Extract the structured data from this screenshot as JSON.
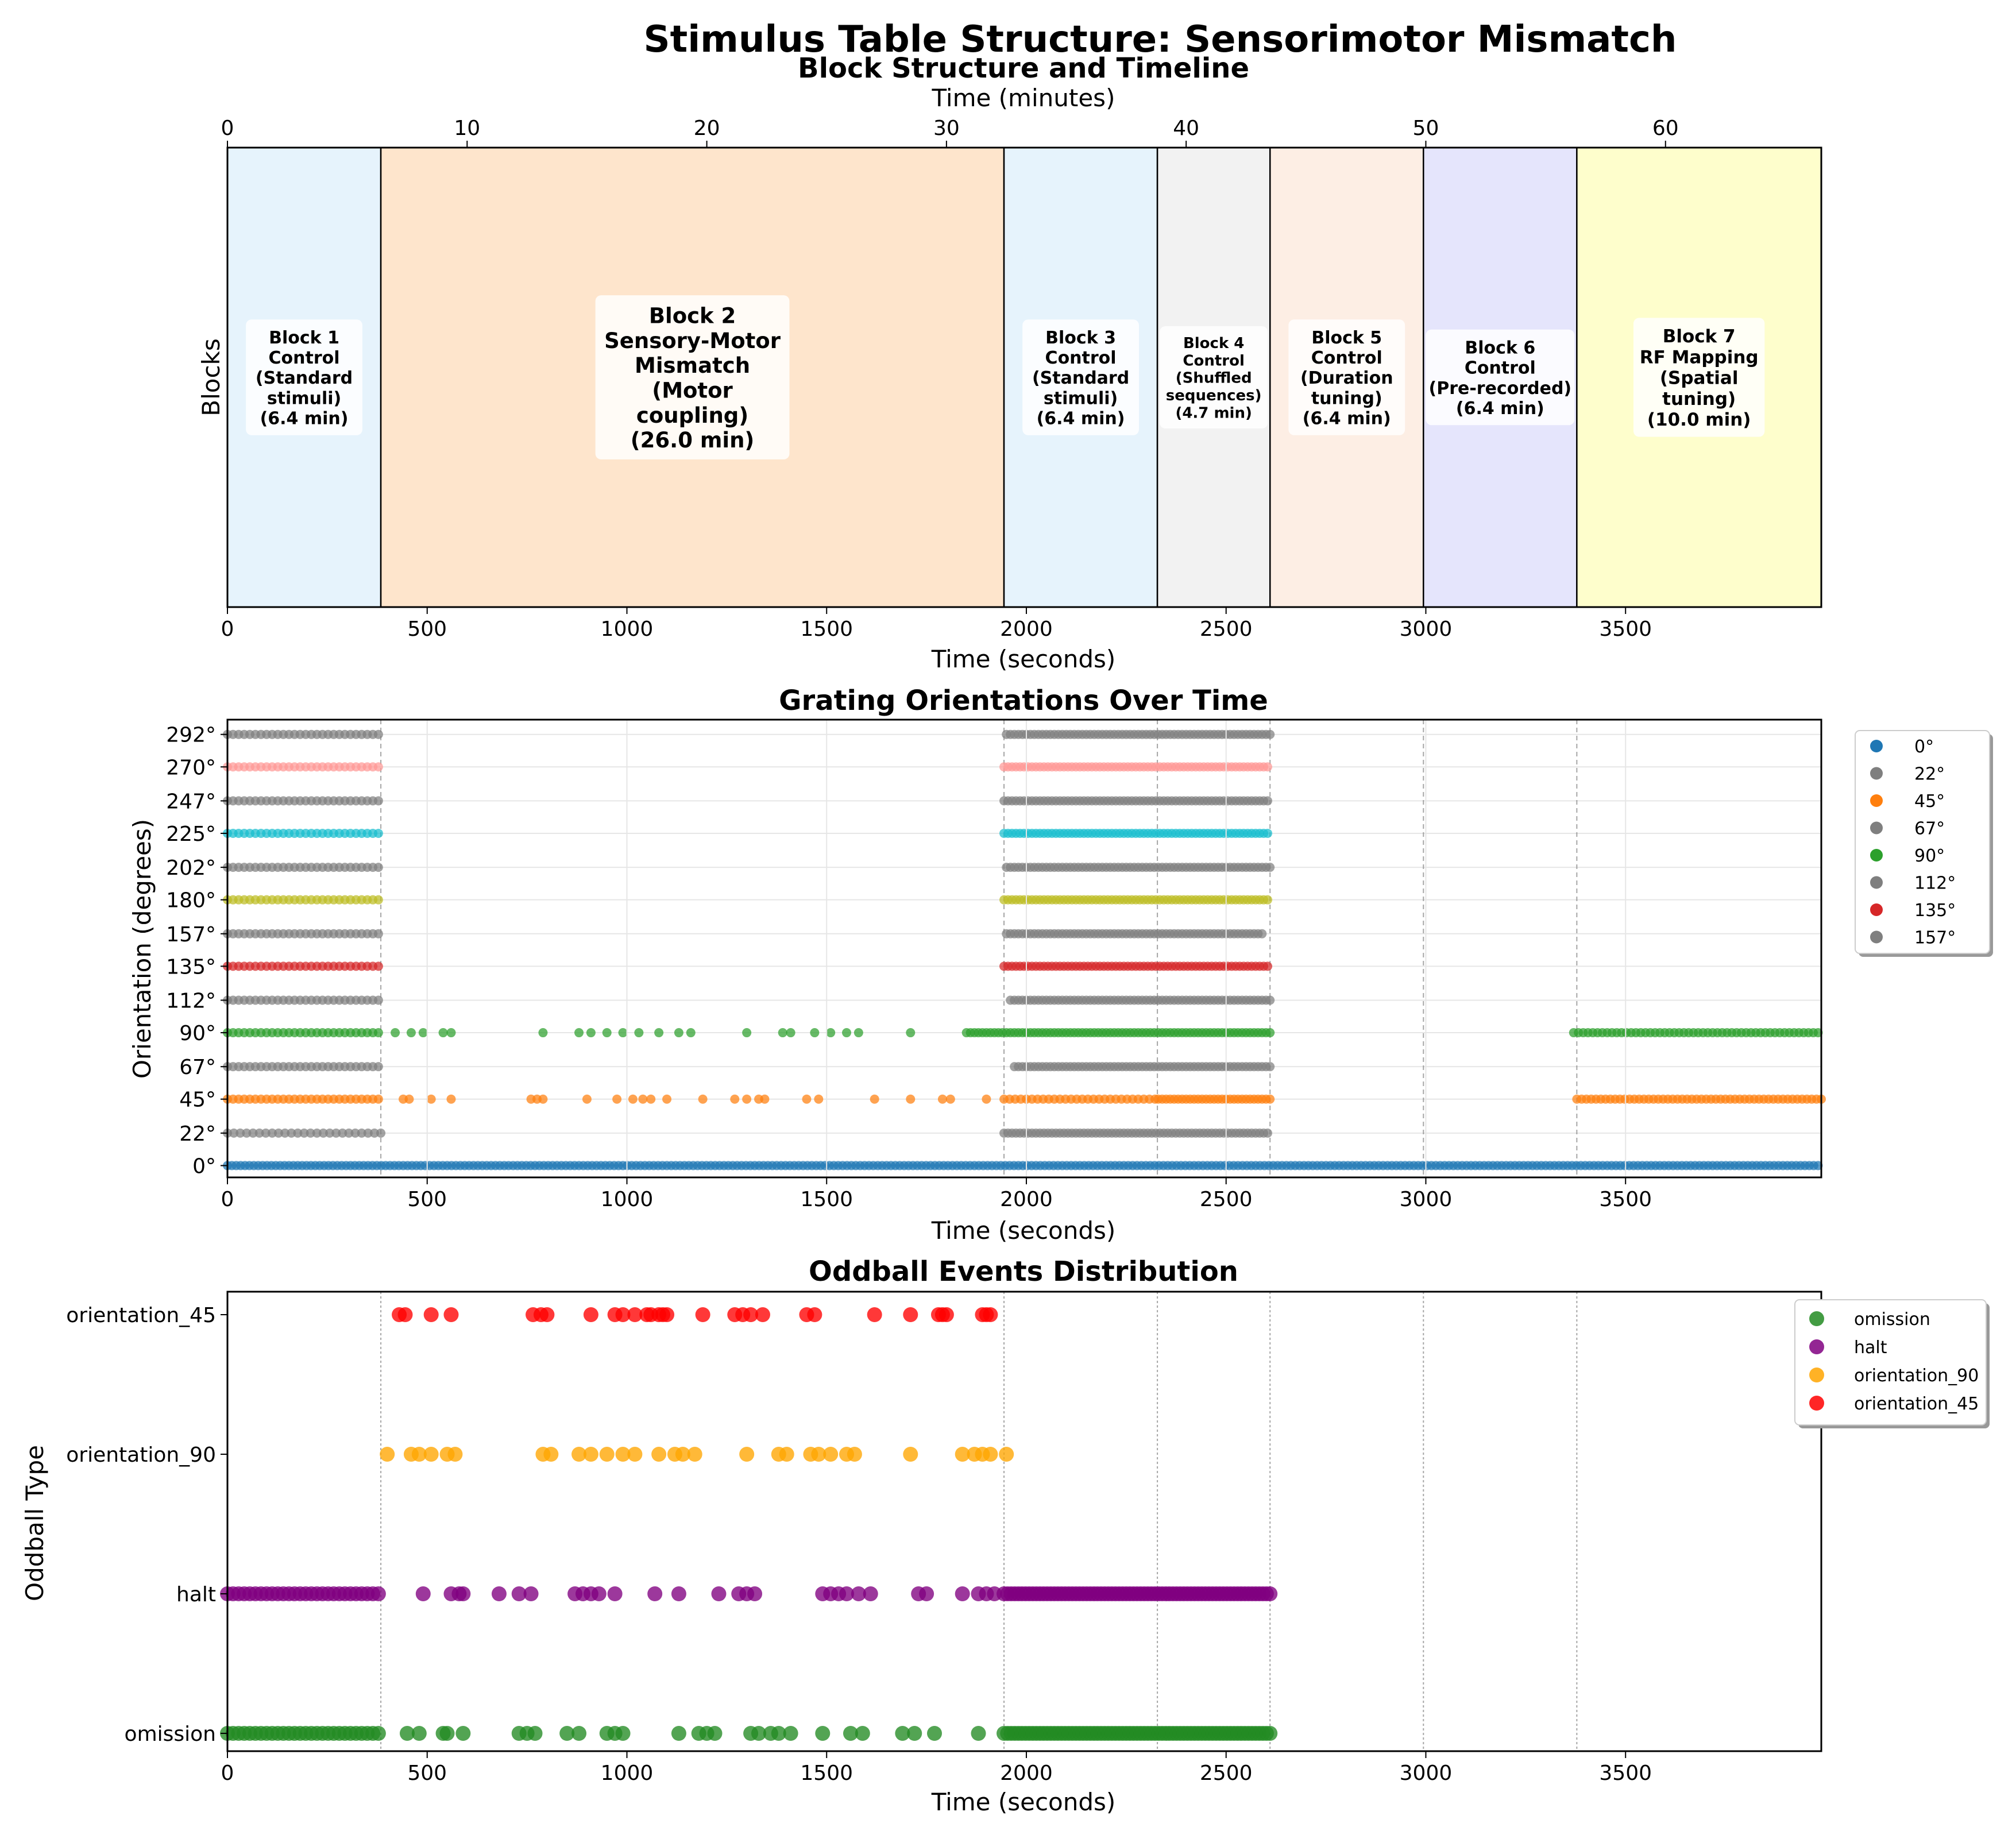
{
  "figure_title": "Stimulus Table Structure: Sensorimotor Mismatch",
  "chart_data": [
    {
      "type": "timeline",
      "title": "Block Structure and Timeline",
      "xlabel": "Time (seconds)",
      "ylabel": "Blocks",
      "top_xlabel": "Time (minutes)",
      "xlim": [
        0,
        3990
      ],
      "x_ticks": [
        0,
        500,
        1000,
        1500,
        2000,
        2500,
        3000,
        3500
      ],
      "top_ticks": [
        0,
        10,
        20,
        30,
        40,
        50,
        60
      ],
      "blocks": [
        {
          "start": 0,
          "end": 384,
          "color": "#e6f3fc",
          "lines": [
            "Block 1",
            "Control",
            "(Standard",
            "stimuli)",
            "(6.4 min)"
          ]
        },
        {
          "start": 384,
          "end": 1944,
          "color": "#fee5cc",
          "lines": [
            "Block 2",
            "Sensory-Motor",
            "Mismatch",
            "(Motor",
            "coupling)",
            "(26.0 min)"
          ]
        },
        {
          "start": 1944,
          "end": 2328,
          "color": "#e6f3fc",
          "lines": [
            "Block 3",
            "Control",
            "(Standard",
            "stimuli)",
            "(6.4 min)"
          ]
        },
        {
          "start": 2328,
          "end": 2610,
          "color": "#f2f2f2",
          "lines": [
            "Block 4",
            "Control",
            "(Shuffled",
            "sequences)",
            "(4.7 min)"
          ]
        },
        {
          "start": 2610,
          "end": 2994,
          "color": "#fdeee4",
          "lines": [
            "Block 5",
            "Control",
            "(Duration",
            "tuning)",
            "(6.4 min)"
          ]
        },
        {
          "start": 2994,
          "end": 3378,
          "color": "#e5e5fc",
          "lines": [
            "Block 6",
            "Control",
            "(Pre-recorded)",
            "(6.4 min)"
          ]
        },
        {
          "start": 3378,
          "end": 3990,
          "color": "#fefecc",
          "lines": [
            "Block 7",
            "RF Mapping",
            "(Spatial",
            "tuning)",
            "(10.0 min)"
          ]
        }
      ]
    },
    {
      "type": "scatter",
      "title": "Grating Orientations Over Time",
      "xlabel": "Time (seconds)",
      "ylabel": "Orientation (degrees)",
      "xlim": [
        0,
        3990
      ],
      "ylim": [
        -8,
        302
      ],
      "x_ticks": [
        0,
        500,
        1000,
        1500,
        2000,
        2500,
        3000,
        3500
      ],
      "y_ticks": [
        0,
        22,
        45,
        67,
        90,
        112,
        135,
        157,
        180,
        202,
        225,
        247,
        270,
        292
      ],
      "y_tick_labels": [
        "0°",
        "22°",
        "45°",
        "67°",
        "90°",
        "112°",
        "135°",
        "157°",
        "180°",
        "202°",
        "225°",
        "247°",
        "270°",
        "292°"
      ],
      "block_boundaries": [
        384,
        1944,
        2328,
        2610,
        2994,
        3378
      ],
      "legend": [
        {
          "label": "0°",
          "color": "#1f77b4"
        },
        {
          "label": "22°",
          "color": "#7f7f7f"
        },
        {
          "label": "45°",
          "color": "#ff7f0e"
        },
        {
          "label": "67°",
          "color": "#7f7f7f"
        },
        {
          "label": "90°",
          "color": "#2ca02c"
        },
        {
          "label": "112°",
          "color": "#7f7f7f"
        },
        {
          "label": "135°",
          "color": "#d62728"
        },
        {
          "label": "157°",
          "color": "#7f7f7f"
        }
      ],
      "series": [
        {
          "name": "0°",
          "y": 0,
          "color": "#1f77b4",
          "segments": [
            [
              0,
              3990,
              11
            ]
          ],
          "points": []
        },
        {
          "name": "22°",
          "y": 22,
          "color": "#7f7f7f",
          "segments": [
            [
              0,
              384,
              16
            ],
            [
              1944,
              2610,
              10
            ]
          ],
          "points": []
        },
        {
          "name": "45°",
          "y": 45,
          "color": "#ff7f0e",
          "segments": [
            [
              0,
              384,
              14
            ],
            [
              1944,
              2330,
              14
            ],
            [
              2330,
              2610,
              10
            ],
            [
              3378,
              3990,
              12
            ]
          ],
          "points": [
            440,
            455,
            510,
            560,
            760,
            775,
            790,
            900,
            975,
            1015,
            1040,
            1060,
            1100,
            1190,
            1270,
            1300,
            1330,
            1345,
            1450,
            1480,
            1620,
            1710,
            1790,
            1810,
            1900
          ]
        },
        {
          "name": "67°",
          "y": 67,
          "color": "#7f7f7f",
          "segments": [
            [
              0,
              384,
              14
            ],
            [
              1970,
              2610,
              10
            ]
          ],
          "points": []
        },
        {
          "name": "90°",
          "y": 90,
          "color": "#2ca02c",
          "segments": [
            [
              0,
              384,
              14
            ],
            [
              1850,
              2610,
              10
            ],
            [
              3370,
              3990,
              12
            ]
          ],
          "points": [
            420,
            460,
            490,
            540,
            560,
            790,
            880,
            910,
            950,
            990,
            1030,
            1080,
            1130,
            1160,
            1300,
            1390,
            1410,
            1470,
            1510,
            1550,
            1580,
            1710
          ]
        },
        {
          "name": "112°",
          "y": 112,
          "color": "#7f7f7f",
          "segments": [
            [
              0,
              384,
              14
            ],
            [
              1960,
              2610,
              10
            ]
          ],
          "points": []
        },
        {
          "name": "135°",
          "y": 135,
          "color": "#d62728",
          "segments": [
            [
              0,
              384,
              14
            ],
            [
              1944,
              2610,
              10
            ]
          ],
          "points": []
        },
        {
          "name": "157°",
          "y": 157,
          "color": "#7f7f7f",
          "segments": [
            [
              0,
              384,
              14
            ],
            [
              1950,
              2590,
              10
            ]
          ],
          "points": []
        },
        {
          "name": "180°",
          "y": 180,
          "color": "#bcbd22",
          "segments": [
            [
              0,
              384,
              14
            ],
            [
              1944,
              2610,
              10
            ]
          ],
          "points": []
        },
        {
          "name": "202°",
          "y": 202,
          "color": "#7f7f7f",
          "segments": [
            [
              0,
              384,
              14
            ],
            [
              1950,
              2610,
              10
            ]
          ],
          "points": []
        },
        {
          "name": "225°",
          "y": 225,
          "color": "#17becf",
          "segments": [
            [
              0,
              384,
              14
            ],
            [
              1944,
              2610,
              10
            ]
          ],
          "points": []
        },
        {
          "name": "247°",
          "y": 247,
          "color": "#7f7f7f",
          "segments": [
            [
              0,
              384,
              14
            ],
            [
              1944,
              2610,
              10
            ]
          ],
          "points": []
        },
        {
          "name": "270°",
          "y": 270,
          "color": "#ff9896",
          "segments": [
            [
              0,
              384,
              14
            ],
            [
              1944,
              2610,
              10
            ]
          ],
          "points": []
        },
        {
          "name": "292°",
          "y": 292,
          "color": "#7f7f7f",
          "segments": [
            [
              0,
              384,
              14
            ],
            [
              1950,
              2610,
              10
            ]
          ],
          "points": []
        }
      ]
    },
    {
      "type": "scatter",
      "title": "Oddball Events Distribution",
      "xlabel": "Time (seconds)",
      "ylabel": "Oddball Type",
      "xlim": [
        0,
        3990
      ],
      "categories": [
        "omission",
        "halt",
        "orientation_90",
        "orientation_45"
      ],
      "x_ticks": [
        0,
        500,
        1000,
        1500,
        2000,
        2500,
        3000,
        3500
      ],
      "block_boundaries": [
        384,
        1944,
        2328,
        2610,
        2994,
        3378
      ],
      "series": [
        {
          "name": "omission",
          "color": "#228b22",
          "segments": [
            [
              0,
              384,
              14
            ],
            [
              1944,
              2610,
              9
            ]
          ],
          "points": [
            450,
            480,
            540,
            550,
            590,
            730,
            750,
            770,
            850,
            880,
            950,
            970,
            990,
            1130,
            1180,
            1200,
            1220,
            1310,
            1330,
            1360,
            1380,
            1410,
            1490,
            1560,
            1590,
            1690,
            1720,
            1770,
            1880
          ]
        },
        {
          "name": "halt",
          "color": "#800080",
          "segments": [
            [
              0,
              384,
              14
            ],
            [
              1944,
              2610,
              9
            ]
          ],
          "points": [
            490,
            560,
            580,
            590,
            680,
            730,
            760,
            870,
            890,
            910,
            930,
            970,
            1070,
            1130,
            1230,
            1280,
            1300,
            1320,
            1490,
            1510,
            1530,
            1550,
            1580,
            1610,
            1730,
            1750,
            1840,
            1880,
            1900,
            1920
          ]
        },
        {
          "name": "orientation_90",
          "color": "#ffa500",
          "points": [
            400,
            460,
            480,
            510,
            550,
            570,
            790,
            810,
            880,
            910,
            950,
            990,
            1020,
            1080,
            1120,
            1140,
            1170,
            1300,
            1380,
            1400,
            1460,
            1480,
            1510,
            1550,
            1570,
            1710,
            1840,
            1870,
            1890,
            1910,
            1950
          ]
        },
        {
          "name": "orientation_45",
          "color": "#ff0000",
          "points": [
            430,
            445,
            510,
            560,
            765,
            785,
            800,
            910,
            970,
            990,
            1020,
            1050,
            1060,
            1080,
            1090,
            1100,
            1190,
            1270,
            1290,
            1310,
            1340,
            1450,
            1470,
            1620,
            1710,
            1780,
            1790,
            1800,
            1890,
            1900,
            1910
          ]
        }
      ]
    }
  ]
}
